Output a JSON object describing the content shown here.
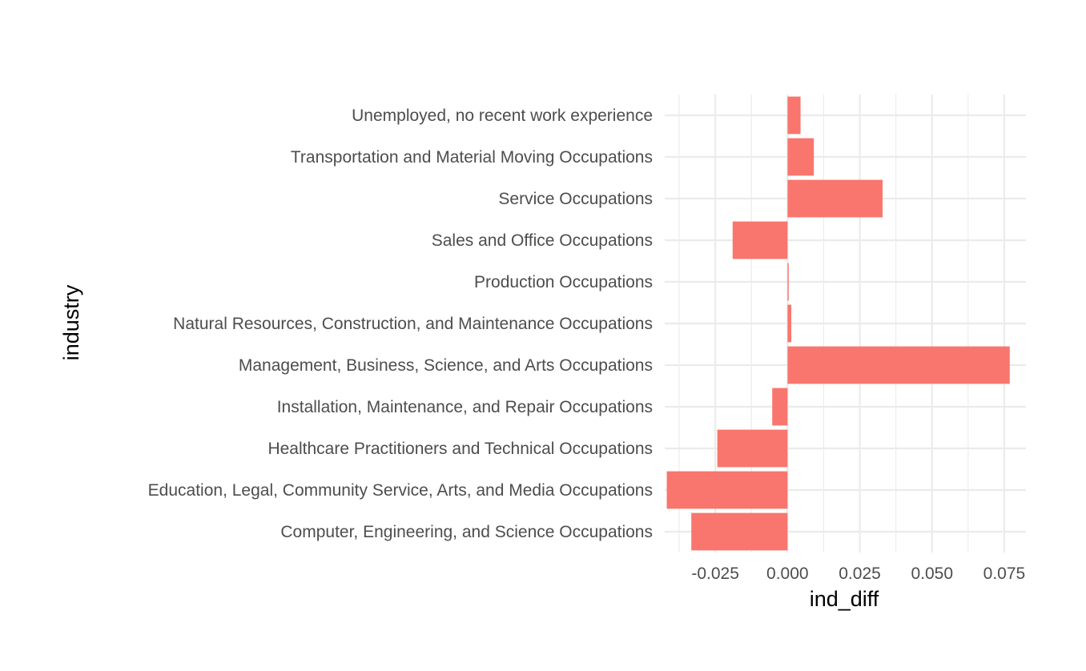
{
  "chart_data": {
    "type": "bar",
    "orientation": "horizontal",
    "title": "",
    "xlabel": "ind_diff",
    "ylabel": "industry",
    "xlim": [
      -0.0425,
      0.0825
    ],
    "x_ticks": [
      -0.025,
      0.0,
      0.025,
      0.05,
      0.075
    ],
    "x_tick_labels": [
      "-0.025",
      "0.000",
      "0.025",
      "0.050",
      "0.075"
    ],
    "grid": true,
    "legend": "none",
    "bar_color": "#F8766D",
    "categories": [
      "Computer, Engineering, and Science Occupations",
      "Education, Legal, Community Service, Arts, and Media Occupations",
      "Healthcare Practitioners and Technical Occupations",
      "Installation, Maintenance, and Repair Occupations",
      "Management, Business, Science, and Arts Occupations",
      "Natural Resources, Construction, and Maintenance Occupations",
      "Production Occupations",
      "Sales and Office Occupations",
      "Service Occupations",
      "Transportation and Material Moving Occupations",
      "Unemployed, no recent work experience"
    ],
    "values": [
      -0.0333,
      -0.0418,
      -0.0243,
      -0.0053,
      0.0769,
      0.0013,
      0.0004,
      -0.019,
      0.0329,
      0.0091,
      0.0045
    ]
  }
}
